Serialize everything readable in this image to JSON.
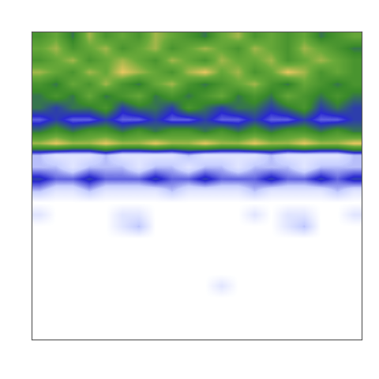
{
  "chart_data": {
    "type": "heatmap",
    "tick_labels": false,
    "cells": [
      [
        6,
        7,
        5,
        8,
        6,
        7,
        6,
        8,
        7,
        6,
        5,
        7,
        8,
        6,
        7,
        6,
        7,
        5,
        6,
        7
      ],
      [
        7,
        8,
        6,
        7,
        8,
        6,
        7,
        8,
        6,
        7,
        8,
        7,
        6,
        8,
        7,
        6,
        8,
        7,
        6,
        5
      ],
      [
        6,
        7,
        8,
        6,
        7,
        8,
        7,
        6,
        8,
        7,
        6,
        8,
        7,
        7,
        8,
        6,
        7,
        8,
        7,
        6
      ],
      [
        8,
        7,
        6,
        8,
        7,
        9,
        8,
        7,
        6,
        8,
        9,
        7,
        8,
        6,
        7,
        9,
        8,
        6,
        7,
        6
      ],
      [
        6,
        5,
        7,
        6,
        8,
        6,
        5,
        7,
        8,
        6,
        5,
        6,
        7,
        8,
        6,
        5,
        7,
        6,
        5,
        6
      ],
      [
        5,
        6,
        5,
        7,
        5,
        6,
        7,
        5,
        6,
        5,
        6,
        7,
        5,
        6,
        5,
        7,
        6,
        5,
        6,
        5
      ],
      [
        5,
        4,
        5,
        5,
        6,
        4,
        5,
        5,
        4,
        6,
        5,
        4,
        5,
        5,
        4,
        5,
        6,
        4,
        5,
        4
      ],
      [
        3,
        4,
        3,
        3,
        4,
        3,
        3,
        4,
        3,
        3,
        4,
        3,
        3,
        4,
        3,
        3,
        4,
        3,
        3,
        4
      ],
      [
        5,
        6,
        5,
        6,
        6,
        5,
        6,
        5,
        6,
        6,
        5,
        6,
        5,
        6,
        5,
        6,
        6,
        5,
        6,
        5
      ],
      [
        8,
        9,
        8,
        8,
        9,
        8,
        8,
        9,
        8,
        8,
        9,
        8,
        8,
        9,
        8,
        8,
        9,
        8,
        8,
        9
      ],
      [
        2,
        1,
        1,
        1,
        2,
        1,
        1,
        1,
        1,
        2,
        1,
        1,
        1,
        1,
        2,
        1,
        1,
        1,
        1,
        2
      ],
      [
        2,
        2,
        1,
        2,
        2,
        2,
        1,
        2,
        2,
        1,
        2,
        2,
        1,
        2,
        2,
        2,
        1,
        2,
        2,
        2
      ],
      [
        4,
        3,
        3,
        4,
        3,
        3,
        3,
        4,
        3,
        3,
        4,
        3,
        3,
        3,
        4,
        3,
        3,
        4,
        3,
        4
      ],
      [
        2,
        1,
        1,
        2,
        1,
        1,
        1,
        1,
        2,
        1,
        1,
        1,
        1,
        2,
        1,
        1,
        1,
        1,
        2,
        1
      ],
      [
        0,
        0,
        0,
        0,
        0,
        0,
        0,
        0,
        0,
        0,
        0,
        0,
        0,
        0,
        0,
        0,
        0,
        0,
        0,
        0
      ],
      [
        1,
        0,
        0,
        0,
        0,
        1,
        1,
        0,
        0,
        0,
        0,
        0,
        0,
        1,
        0,
        1,
        1,
        0,
        0,
        1
      ],
      [
        0,
        0,
        0,
        0,
        0,
        1,
        2,
        0,
        0,
        0,
        0,
        0,
        0,
        0,
        0,
        1,
        2,
        0,
        0,
        0
      ],
      [
        0,
        0,
        0,
        0,
        0,
        0,
        0,
        0,
        0,
        0,
        0,
        0,
        0,
        0,
        0,
        0,
        0,
        0,
        0,
        0
      ],
      [
        0,
        0,
        0,
        0,
        0,
        0,
        0,
        0,
        0,
        0,
        0,
        0,
        0,
        0,
        0,
        0,
        0,
        0,
        0,
        0
      ],
      [
        0,
        0,
        0,
        0,
        0,
        0,
        0,
        0,
        0,
        0,
        0,
        0,
        0,
        0,
        0,
        0,
        0,
        0,
        0,
        0
      ],
      [
        0,
        0,
        0,
        0,
        0,
        0,
        0,
        0,
        0,
        0,
        0,
        0,
        0,
        0,
        0,
        0,
        0,
        0,
        0,
        0
      ],
      [
        0,
        0,
        0,
        0,
        0,
        0,
        0,
        0,
        0,
        0,
        0,
        1,
        0,
        0,
        0,
        0,
        0,
        0,
        0,
        0
      ],
      [
        0,
        0,
        0,
        0,
        0,
        0,
        0,
        0,
        0,
        0,
        0,
        0,
        0,
        0,
        0,
        0,
        0,
        0,
        0,
        0
      ],
      [
        0,
        0,
        0,
        0,
        0,
        0,
        0,
        0,
        0,
        0,
        0,
        0,
        0,
        0,
        0,
        0,
        0,
        0,
        0,
        0
      ],
      [
        0,
        0,
        0,
        0,
        0,
        0,
        0,
        0,
        0,
        0,
        0,
        0,
        0,
        0,
        0,
        0,
        0,
        0,
        0,
        0
      ],
      [
        0,
        0,
        0,
        0,
        0,
        0,
        0,
        0,
        0,
        0,
        0,
        0,
        0,
        0,
        0,
        0,
        0,
        0,
        0,
        0
      ]
    ]
  }
}
